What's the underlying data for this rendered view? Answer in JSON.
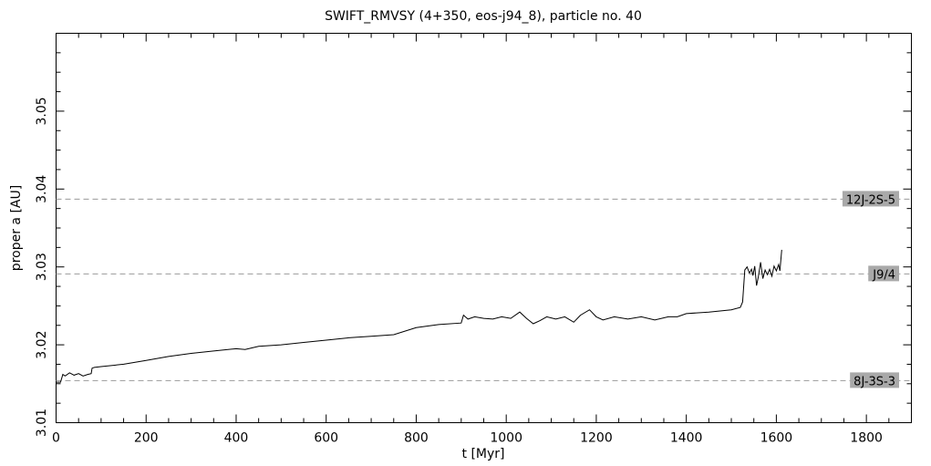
{
  "chart_data": {
    "type": "line",
    "title": "SWIFT_RMVSY (4+350, eos-j94_8), particle no. 40",
    "xlabel": "t [Myr]",
    "ylabel": "proper a [AU]",
    "xlim": [
      0,
      1900
    ],
    "ylim": [
      3.01,
      3.06
    ],
    "xticks": [
      0,
      200,
      400,
      600,
      800,
      1000,
      1200,
      1400,
      1600,
      1800
    ],
    "yticks": [
      3.01,
      3.02,
      3.03,
      3.04,
      3.05
    ],
    "xtick_labels": [
      "0",
      "200",
      "400",
      "600",
      "800",
      "1000",
      "1200",
      "1400",
      "1600",
      "1800"
    ],
    "ytick_labels": [
      "3.01",
      "3.02",
      "3.03",
      "3.04",
      "3.05"
    ],
    "grid": false,
    "line_color": "#000000",
    "resonances": [
      {
        "label": "12J-2S-5",
        "a": 3.0387
      },
      {
        "label": "J9/4",
        "a": 3.0291
      },
      {
        "label": "8J-3S-3",
        "a": 3.0154
      }
    ],
    "series": [
      {
        "x": [
          0,
          10,
          15,
          20,
          30,
          40,
          50,
          60,
          70,
          78,
          80,
          85,
          100,
          150,
          200,
          250,
          300,
          350,
          400,
          420,
          450,
          500,
          550,
          600,
          650,
          700,
          750,
          800,
          850,
          900,
          905,
          915,
          930,
          950,
          970,
          990,
          1010,
          1030,
          1045,
          1060,
          1075,
          1090,
          1110,
          1130,
          1150,
          1165,
          1185,
          1200,
          1215,
          1240,
          1270,
          1300,
          1330,
          1360,
          1380,
          1400,
          1450,
          1500,
          1520,
          1525,
          1530,
          1535,
          1540,
          1545,
          1548,
          1552,
          1556,
          1560,
          1565,
          1570,
          1575,
          1580,
          1585,
          1590,
          1595,
          1600,
          1605,
          1608,
          1612
        ],
        "y": [
          3.0152,
          3.0152,
          3.0162,
          3.016,
          3.0164,
          3.0161,
          3.0163,
          3.016,
          3.0162,
          3.0163,
          3.017,
          3.0171,
          3.0172,
          3.0175,
          3.018,
          3.0185,
          3.0189,
          3.0192,
          3.0195,
          3.0194,
          3.0198,
          3.02,
          3.0203,
          3.0206,
          3.0209,
          3.0211,
          3.0213,
          3.0222,
          3.0226,
          3.0228,
          3.0238,
          3.0233,
          3.0236,
          3.0234,
          3.0233,
          3.0236,
          3.0234,
          3.0242,
          3.0234,
          3.0227,
          3.0231,
          3.0236,
          3.0233,
          3.0236,
          3.0229,
          3.0238,
          3.0245,
          3.0236,
          3.0232,
          3.0236,
          3.0233,
          3.0236,
          3.0232,
          3.0236,
          3.0236,
          3.024,
          3.0242,
          3.0245,
          3.0248,
          3.0255,
          3.0296,
          3.03,
          3.0292,
          3.0297,
          3.0289,
          3.0301,
          3.0276,
          3.0287,
          3.0306,
          3.0285,
          3.0296,
          3.029,
          3.0297,
          3.0288,
          3.0301,
          3.0295,
          3.0303,
          3.0295,
          3.0322
        ]
      }
    ]
  }
}
